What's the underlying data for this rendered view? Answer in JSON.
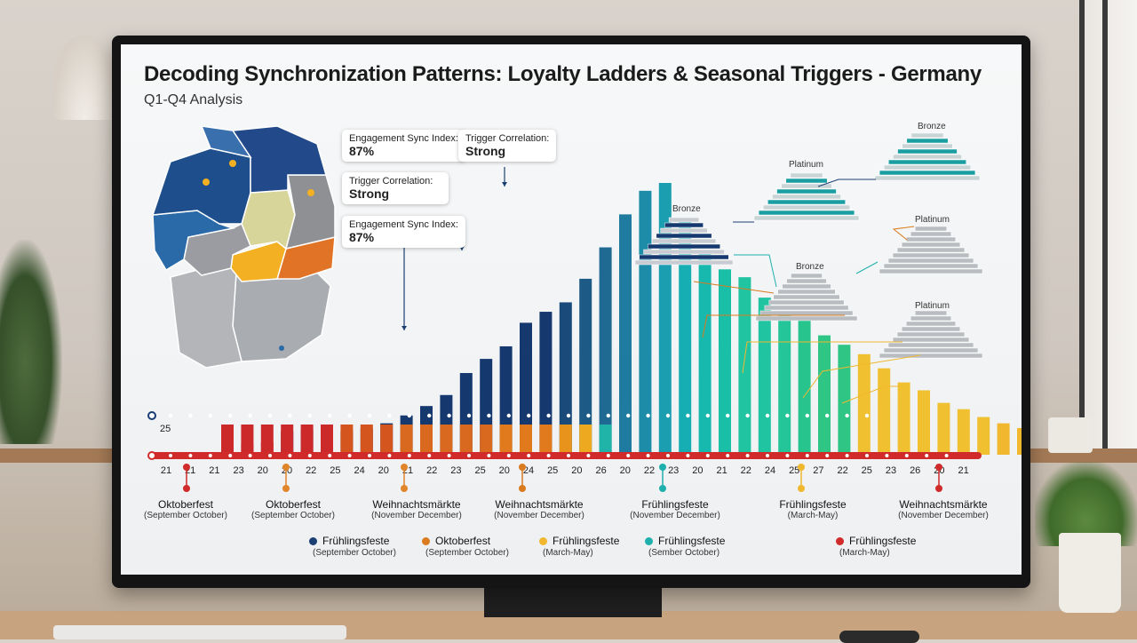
{
  "title": "Decoding Synchronization Patterns: Loyalty Ladders & Seasonal Triggers - Germany",
  "subtitle": "Q1-Q4 Analysis",
  "callouts": [
    {
      "label": "Engagement Sync Index:",
      "value": "87%"
    },
    {
      "label": "Trigger Correlation:",
      "value": "Strong"
    },
    {
      "label": "Engagement Sync Index:",
      "value": "87%"
    },
    {
      "label": "Trigger Correlation:",
      "value": "Strong"
    }
  ],
  "tiers": [
    "Bronze",
    "Platinum",
    "Bronze",
    "Platinum",
    "Bronze",
    "Platinum"
  ],
  "map": {
    "regions": [
      {
        "name": "Bayern",
        "color": "#a9acb1"
      },
      {
        "name": "Sachsen",
        "color": "#e07325"
      },
      {
        "name": "Thüringen",
        "color": "#f2b022"
      },
      {
        "name": "Sachsen-Anhalt",
        "color": "#d8d59a"
      },
      {
        "name": "Brandenburg",
        "color": "#8e9094"
      },
      {
        "name": "Niedersachsen",
        "color": "#1e4f8c"
      },
      {
        "name": "Mecklenburg-Vorpommern",
        "color": "#22498a"
      },
      {
        "name": "Nordrhein-Westfalen",
        "color": "#2a6aa8"
      },
      {
        "name": "Baden-Württemberg",
        "color": "#b3b5b9"
      }
    ]
  },
  "chart_data": {
    "type": "bar",
    "y_start_label": "25",
    "tick_labels": [
      "21",
      "21",
      "21",
      "23",
      "20",
      "20",
      "22",
      "25",
      "24",
      "20",
      "21",
      "22",
      "23",
      "25",
      "20",
      "24",
      "25",
      "20",
      "26",
      "20",
      "22",
      "23",
      "20",
      "21",
      "22",
      "24",
      "25",
      "27",
      "22",
      "25",
      "23",
      "26",
      "20",
      "21"
    ],
    "values": [
      6,
      7,
      8,
      15,
      16,
      17,
      15,
      17,
      20,
      25,
      31,
      38,
      52,
      61,
      69,
      84,
      91,
      97,
      112,
      132,
      153,
      168,
      173,
      149,
      129,
      118,
      113,
      100,
      89,
      86,
      76,
      70,
      64,
      55,
      46,
      41,
      33,
      29,
      24,
      20,
      17,
      14,
      11,
      9,
      7,
      6,
      5
    ],
    "colors": [
      "#cc2a2a",
      "#cc2a2a",
      "#cc2a2a",
      "#15386e",
      "#15386e",
      "#15386e",
      "#15386e",
      "#15386e",
      "#15386e",
      "#15386e",
      "#15386e",
      "#15386e",
      "#15386e",
      "#15386e",
      "#15386e",
      "#15386e",
      "#15386e",
      "#194a7a",
      "#1d5a86",
      "#1f6a93",
      "#1f7b9f",
      "#1d8ca9",
      "#1a9eb0",
      "#17aeb3",
      "#17b8ae",
      "#1abfa8",
      "#20c4a0",
      "#20c4a0",
      "#24c598",
      "#27c48e",
      "#2ec585",
      "#2ec585",
      "#f0c030",
      "#f0c030",
      "#f0c030",
      "#f0c030",
      "#f0c030",
      "#f0c030",
      "#f0c030",
      "#f0b72f",
      "#f0b72f",
      "#f2a72c",
      "#f2a72c",
      "#ea9a2b",
      "#ea9a2b",
      "#e88b29",
      "#e88b29"
    ],
    "lower_colors": [
      "#cc2a2a",
      "#cc2a2a",
      "#cc2a2a",
      "#cc2a2a",
      "#cc2a2a",
      "#cc2a2a",
      "#d5551f",
      "#d5551f",
      "#d5551f",
      "#d9691e",
      "#d9691e",
      "#d9691e",
      "#d9691e",
      "#d9691e",
      "#e07a1c",
      "#e07a1c",
      "#e07a1c",
      "#e8941c",
      "#edaa21",
      "#20b3a7"
    ]
  },
  "events": [
    {
      "name": "Oktoberfest",
      "range": "(September October)",
      "color": "#d02a2a"
    },
    {
      "name": "Oktoberfest",
      "range": "(September October)",
      "color": "#e0852a"
    },
    {
      "name": "Weihnachtsmärkte",
      "range": "(November December)",
      "color": "#e0852a"
    },
    {
      "name": "Weihnachtsmärkte",
      "range": "(November December)",
      "color": "#d97b1e"
    },
    {
      "name": "Frühlingsfeste",
      "range": "(November December)",
      "color": "#1fb0ad"
    },
    {
      "name": "Frühlingsfeste",
      "range": "(March-May)",
      "color": "#f0b72f"
    },
    {
      "name": "Weihnachtsmärkte",
      "range": "(November December)",
      "color": "#d02a2a"
    }
  ],
  "legend": [
    {
      "name": "Frühlingsfeste",
      "sub": "(September October)",
      "color": "#1b3f73"
    },
    {
      "name": "Oktoberfest",
      "sub": "(September October)",
      "color": "#d97b1e"
    },
    {
      "name": "Frühlingsfeste",
      "sub": "(March-May)",
      "color": "#f0b72f"
    },
    {
      "name": "Frühlingsfeste",
      "sub": "(Sember October)",
      "color": "#1fb0ad"
    },
    {
      "name": "Frühlingsfeste",
      "sub": "(March-May)",
      "color": "#d02a2a"
    }
  ]
}
